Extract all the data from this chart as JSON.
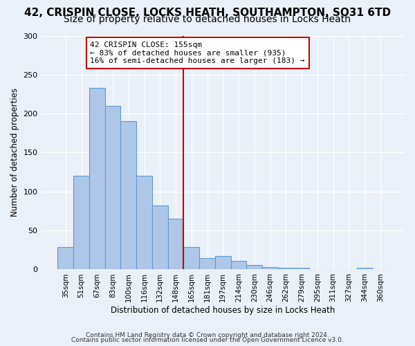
{
  "title": "42, CRISPIN CLOSE, LOCKS HEATH, SOUTHAMPTON, SO31 6TD",
  "subtitle": "Size of property relative to detached houses in Locks Heath",
  "xlabel": "Distribution of detached houses by size in Locks Heath",
  "ylabel": "Number of detached properties",
  "bar_labels": [
    "35sqm",
    "51sqm",
    "67sqm",
    "83sqm",
    "100sqm",
    "116sqm",
    "132sqm",
    "148sqm",
    "165sqm",
    "181sqm",
    "197sqm",
    "214sqm",
    "230sqm",
    "246sqm",
    "262sqm",
    "279sqm",
    "295sqm",
    "311sqm",
    "327sqm",
    "344sqm",
    "360sqm"
  ],
  "bar_values": [
    29,
    120,
    233,
    210,
    190,
    120,
    82,
    65,
    29,
    15,
    17,
    11,
    6,
    3,
    2,
    2,
    0,
    0,
    0,
    2,
    0
  ],
  "bar_color": "#aec6e8",
  "bar_edge_color": "#5b9bd5",
  "background_color": "#eaf0f8",
  "vline_x": 7.5,
  "vline_color": "#cc0000",
  "annotation_text": "42 CRISPIN CLOSE: 155sqm\n← 83% of detached houses are smaller (935)\n16% of semi-detached houses are larger (183) →",
  "annotation_box_color": "#ffffff",
  "annotation_box_edge_color": "#cc0000",
  "ylim": [
    0,
    300
  ],
  "yticks": [
    0,
    50,
    100,
    150,
    200,
    250,
    300
  ],
  "footer_line1": "Contains HM Land Registry data © Crown copyright and database right 2024.",
  "footer_line2": "Contains public sector information licensed under the Open Government Licence v3.0.",
  "title_fontsize": 11,
  "subtitle_fontsize": 10
}
